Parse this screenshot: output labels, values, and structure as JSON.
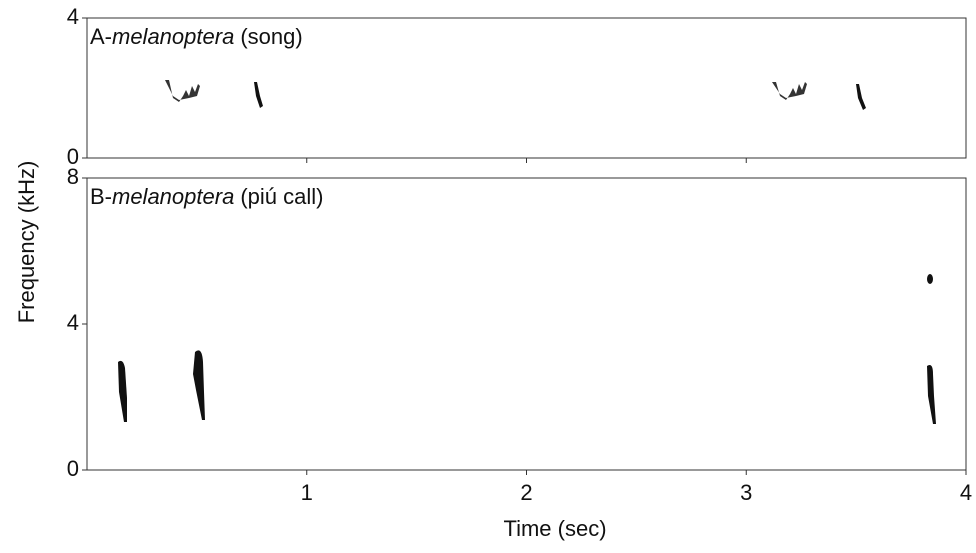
{
  "axis_labels": {
    "y": "Frequency (kHz)",
    "x": "Time (sec)"
  },
  "chart_data": [
    {
      "type": "spectrogram",
      "title": {
        "prefix": "A-",
        "species": "melanoptera",
        "suffix": "(song)"
      },
      "xlim": [
        0,
        4
      ],
      "xticks": [
        1,
        2,
        3
      ],
      "ylim": [
        0,
        4
      ],
      "yticks": [
        0,
        4
      ],
      "show_xtick_labels": false
    },
    {
      "type": "spectrogram",
      "title": {
        "prefix": "B-",
        "species": "melanoptera",
        "suffix": "(piú call)"
      },
      "xlim": [
        0,
        4
      ],
      "xticks": [
        1,
        2,
        3,
        4
      ],
      "ylim": [
        0,
        8
      ],
      "yticks": [
        0,
        4,
        8
      ],
      "show_xtick_labels": true
    }
  ]
}
